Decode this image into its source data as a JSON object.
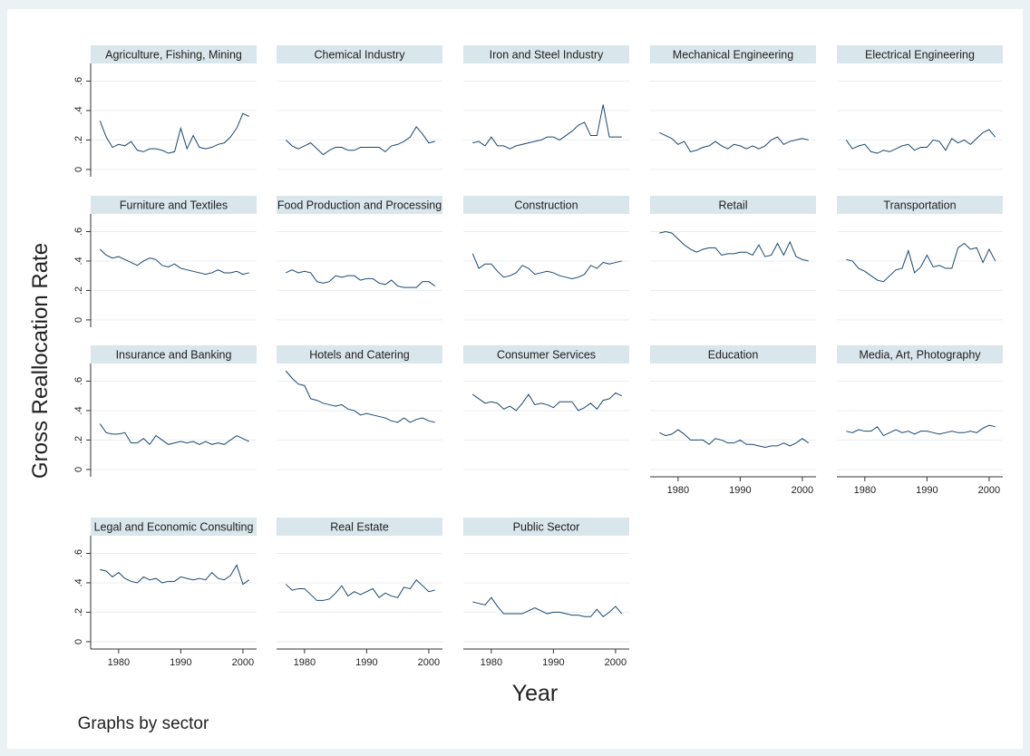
{
  "ylabel": "Gross Reallocation Rate",
  "xlabel": "Year",
  "note": "Graphs by sector",
  "x": [
    1977,
    1978,
    1979,
    1980,
    1981,
    1982,
    1983,
    1984,
    1985,
    1986,
    1987,
    1988,
    1989,
    1990,
    1991,
    1992,
    1993,
    1994,
    1995,
    1996,
    1997,
    1998,
    1999,
    2000,
    2001
  ],
  "xlim": [
    1975.5,
    2002.2
  ],
  "xticks": [
    1980,
    1990,
    2000
  ],
  "ylim": [
    -0.05,
    0.72
  ],
  "yticks": [
    0,
    {
      "value": 0.2,
      "label": ".2"
    },
    {
      "value": 0.4,
      "label": ".4"
    },
    {
      "value": 0.6,
      "label": ".6"
    }
  ],
  "grid": true,
  "color": "#1a476f",
  "chart_data": [
    {
      "type": "line",
      "title": "Agriculture, Fishing, Mining",
      "values": [
        0.33,
        0.22,
        0.15,
        0.17,
        0.16,
        0.19,
        0.13,
        0.12,
        0.14,
        0.14,
        0.13,
        0.11,
        0.12,
        0.28,
        0.14,
        0.23,
        0.15,
        0.14,
        0.15,
        0.17,
        0.18,
        0.22,
        0.28,
        0.38,
        0.36
      ]
    },
    {
      "type": "line",
      "title": "Chemical Industry",
      "values": [
        0.2,
        0.16,
        0.14,
        0.16,
        0.18,
        0.14,
        0.1,
        0.13,
        0.15,
        0.15,
        0.13,
        0.13,
        0.15,
        0.15,
        0.15,
        0.15,
        0.12,
        0.16,
        0.17,
        0.19,
        0.22,
        0.29,
        0.24,
        0.18,
        0.19
      ]
    },
    {
      "type": "line",
      "title": "Iron and Steel Industry",
      "values": [
        0.18,
        0.19,
        0.16,
        0.22,
        0.16,
        0.16,
        0.14,
        0.16,
        0.17,
        0.18,
        0.19,
        0.2,
        0.22,
        0.22,
        0.2,
        0.23,
        0.26,
        0.3,
        0.32,
        0.23,
        0.23,
        0.44,
        0.22,
        0.22,
        0.22
      ]
    },
    {
      "type": "line",
      "title": "Mechanical Engineering",
      "values": [
        0.25,
        0.23,
        0.21,
        0.17,
        0.19,
        0.12,
        0.13,
        0.15,
        0.16,
        0.19,
        0.16,
        0.14,
        0.17,
        0.16,
        0.14,
        0.16,
        0.14,
        0.16,
        0.2,
        0.22,
        0.17,
        0.19,
        0.2,
        0.21,
        0.2
      ]
    },
    {
      "type": "line",
      "title": "Electrical Engineering",
      "values": [
        0.2,
        0.14,
        0.16,
        0.17,
        0.12,
        0.11,
        0.13,
        0.12,
        0.14,
        0.16,
        0.17,
        0.13,
        0.15,
        0.15,
        0.2,
        0.19,
        0.13,
        0.21,
        0.18,
        0.2,
        0.17,
        0.21,
        0.25,
        0.27,
        0.22
      ]
    },
    {
      "type": "line",
      "title": "Furniture and Textiles",
      "values": [
        0.48,
        0.44,
        0.42,
        0.43,
        0.41,
        0.39,
        0.37,
        0.4,
        0.42,
        0.41,
        0.37,
        0.36,
        0.38,
        0.35,
        0.34,
        0.33,
        0.32,
        0.31,
        0.32,
        0.34,
        0.32,
        0.32,
        0.33,
        0.31,
        0.32
      ]
    },
    {
      "type": "line",
      "title": "Food Production and Processing",
      "values": [
        0.32,
        0.34,
        0.32,
        0.33,
        0.32,
        0.26,
        0.25,
        0.26,
        0.3,
        0.29,
        0.3,
        0.3,
        0.27,
        0.28,
        0.28,
        0.25,
        0.24,
        0.27,
        0.23,
        0.22,
        0.22,
        0.22,
        0.26,
        0.26,
        0.23
      ]
    },
    {
      "type": "line",
      "title": "Construction",
      "values": [
        0.45,
        0.35,
        0.38,
        0.38,
        0.33,
        0.29,
        0.3,
        0.32,
        0.37,
        0.35,
        0.31,
        0.32,
        0.33,
        0.32,
        0.3,
        0.29,
        0.28,
        0.29,
        0.31,
        0.37,
        0.35,
        0.39,
        0.38,
        0.39,
        0.4
      ]
    },
    {
      "type": "line",
      "title": "Retail",
      "values": [
        0.59,
        0.6,
        0.59,
        0.55,
        0.51,
        0.48,
        0.46,
        0.48,
        0.49,
        0.49,
        0.44,
        0.45,
        0.45,
        0.46,
        0.46,
        0.44,
        0.51,
        0.43,
        0.44,
        0.52,
        0.44,
        0.53,
        0.43,
        0.41,
        0.4
      ]
    },
    {
      "type": "line",
      "title": "Transportation",
      "values": [
        0.41,
        0.4,
        0.35,
        0.33,
        0.3,
        0.27,
        0.26,
        0.3,
        0.34,
        0.35,
        0.47,
        0.32,
        0.36,
        0.44,
        0.36,
        0.37,
        0.35,
        0.35,
        0.49,
        0.52,
        0.48,
        0.49,
        0.39,
        0.48,
        0.4
      ]
    },
    {
      "type": "line",
      "title": "Insurance and Banking",
      "values": [
        0.31,
        0.25,
        0.24,
        0.24,
        0.25,
        0.18,
        0.18,
        0.21,
        0.17,
        0.23,
        0.2,
        0.17,
        0.18,
        0.19,
        0.18,
        0.19,
        0.17,
        0.19,
        0.17,
        0.18,
        0.17,
        0.2,
        0.23,
        0.21,
        0.19
      ]
    },
    {
      "type": "line",
      "title": "Hotels and Catering",
      "values": [
        0.67,
        0.62,
        0.58,
        0.57,
        0.48,
        0.47,
        0.45,
        0.44,
        0.43,
        0.44,
        0.41,
        0.4,
        0.37,
        0.38,
        0.37,
        0.36,
        0.35,
        0.33,
        0.32,
        0.35,
        0.32,
        0.34,
        0.35,
        0.33,
        0.32
      ]
    },
    {
      "type": "line",
      "title": "Consumer Services",
      "values": [
        0.51,
        0.48,
        0.45,
        0.46,
        0.45,
        0.41,
        0.43,
        0.4,
        0.45,
        0.51,
        0.44,
        0.45,
        0.44,
        0.42,
        0.46,
        0.46,
        0.46,
        0.4,
        0.42,
        0.45,
        0.41,
        0.47,
        0.48,
        0.52,
        0.5
      ]
    },
    {
      "type": "line",
      "title": "Education",
      "values": [
        0.25,
        0.23,
        0.24,
        0.27,
        0.24,
        0.2,
        0.2,
        0.2,
        0.17,
        0.21,
        0.2,
        0.18,
        0.18,
        0.2,
        0.17,
        0.17,
        0.16,
        0.15,
        0.16,
        0.16,
        0.18,
        0.16,
        0.18,
        0.21,
        0.18
      ]
    },
    {
      "type": "line",
      "title": "Media, Art, Photography",
      "values": [
        0.26,
        0.25,
        0.27,
        0.26,
        0.26,
        0.29,
        0.23,
        0.25,
        0.27,
        0.25,
        0.26,
        0.24,
        0.26,
        0.26,
        0.25,
        0.24,
        0.25,
        0.26,
        0.25,
        0.25,
        0.26,
        0.25,
        0.28,
        0.3,
        0.29
      ]
    },
    {
      "type": "line",
      "title": "Legal and Economic Consulting",
      "values": [
        0.49,
        0.48,
        0.44,
        0.47,
        0.43,
        0.41,
        0.4,
        0.44,
        0.42,
        0.43,
        0.4,
        0.41,
        0.41,
        0.44,
        0.43,
        0.42,
        0.43,
        0.42,
        0.47,
        0.43,
        0.42,
        0.45,
        0.52,
        0.39,
        0.42
      ]
    },
    {
      "type": "line",
      "title": "Real Estate",
      "values": [
        0.39,
        0.35,
        0.36,
        0.36,
        0.32,
        0.28,
        0.28,
        0.29,
        0.33,
        0.38,
        0.31,
        0.34,
        0.32,
        0.34,
        0.36,
        0.3,
        0.33,
        0.31,
        0.3,
        0.37,
        0.36,
        0.42,
        0.38,
        0.34,
        0.35
      ]
    },
    {
      "type": "line",
      "title": "Public Sector",
      "values": [
        0.27,
        0.26,
        0.25,
        0.3,
        0.24,
        0.19,
        0.19,
        0.19,
        0.19,
        0.21,
        0.23,
        0.21,
        0.19,
        0.2,
        0.2,
        0.19,
        0.18,
        0.18,
        0.17,
        0.17,
        0.22,
        0.17,
        0.2,
        0.24,
        0.19
      ]
    }
  ]
}
